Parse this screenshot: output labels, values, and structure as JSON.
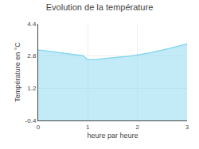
{
  "chart_data": {
    "type": "area",
    "title": "Evolution de la température",
    "xlabel": "heure par heure",
    "ylabel": "Température en °C",
    "x": [
      0,
      0.3,
      0.6,
      0.9,
      1.0,
      1.15,
      1.35,
      1.6,
      1.85,
      2.0,
      2.25,
      2.6,
      3.0
    ],
    "values": [
      3.1,
      3.0,
      2.92,
      2.82,
      2.62,
      2.62,
      2.68,
      2.73,
      2.8,
      2.86,
      2.95,
      3.15,
      3.4
    ],
    "color": "#88d8f0",
    "xlim": [
      0,
      3
    ],
    "xticks": [
      0,
      1,
      2,
      3
    ],
    "ylim": [
      -0.4,
      4.4
    ],
    "yticks": [
      -0.4,
      1.2,
      2.8,
      4.4
    ],
    "grid": true
  }
}
